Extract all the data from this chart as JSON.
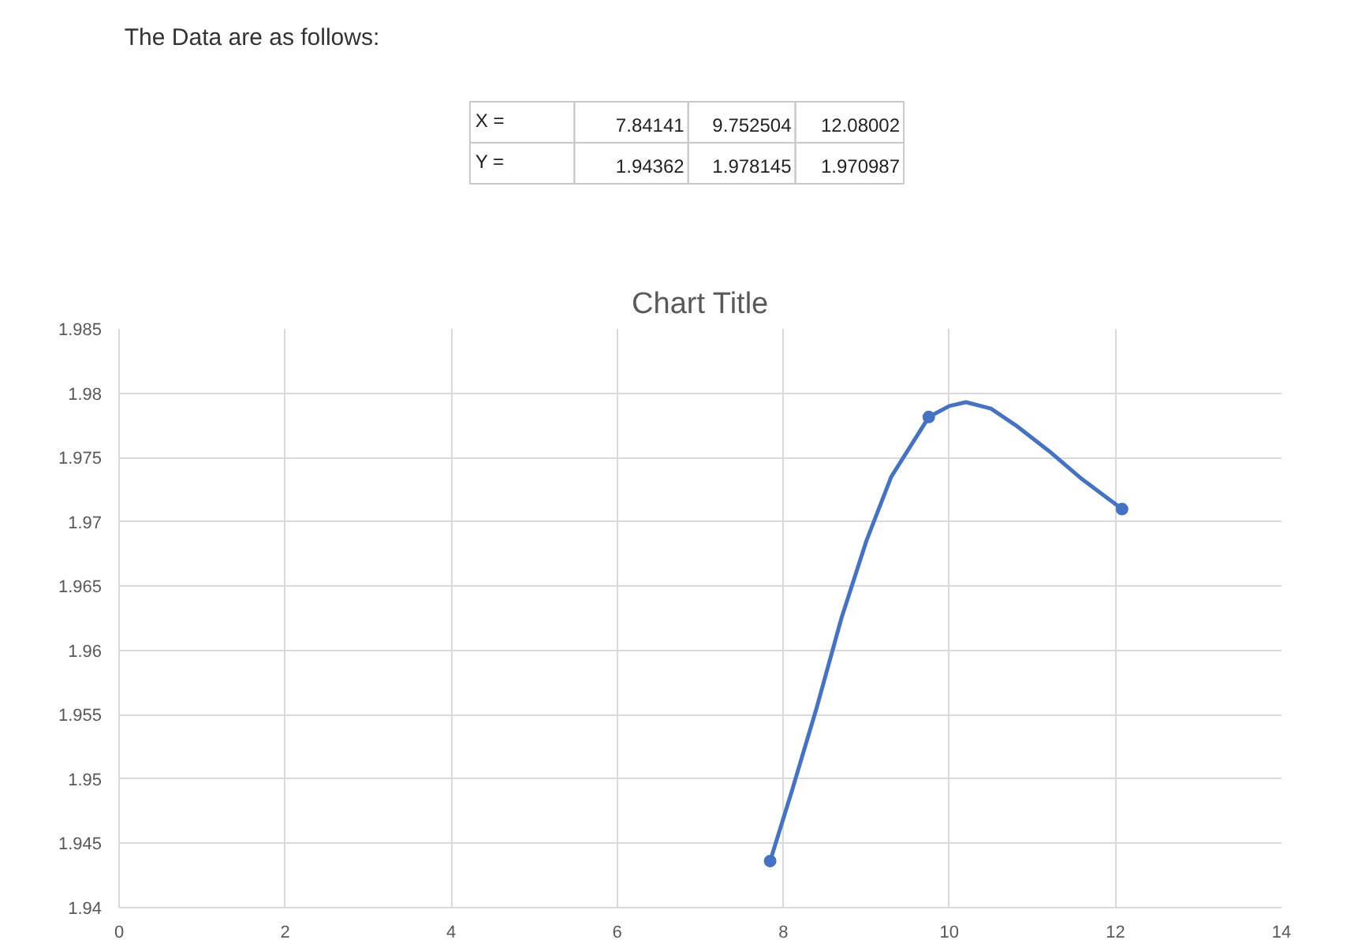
{
  "chart_data": [
    {
      "type": "other",
      "annotations": [
        "The Data are as follows:",
        "X =",
        "7.84141",
        "9.752504",
        "12.08002",
        "Y =",
        "1.94362",
        "1.978145",
        "1.970987"
      ]
    },
    {
      "type": "line",
      "title": "Chart Title",
      "series": [
        {
          "type": "line",
          "marker": "none",
          "color": "#4472c4",
          "x": [
            7.84141,
            8.1,
            8.4,
            8.7,
            9.0,
            9.3,
            9.752504,
            10.0,
            10.2,
            10.5,
            10.8,
            11.2,
            11.6,
            12.08002
          ],
          "values": [
            1.94362,
            1.949,
            1.9555,
            1.9625,
            1.9685,
            1.9735,
            1.978145,
            1.979,
            1.9793,
            1.9788,
            1.9775,
            1.9755,
            1.9733,
            1.970987
          ]
        },
        {
          "type": "scatter",
          "marker": "circle",
          "color": "#4472c4",
          "x": [
            7.84141,
            9.752504,
            12.08002
          ],
          "values": [
            1.94362,
            1.978145,
            1.970987
          ]
        }
      ],
      "xlim": [
        0,
        14
      ],
      "xticks": [
        0,
        2,
        4,
        6,
        8,
        10,
        12,
        14
      ],
      "ylim": [
        1.94,
        1.985
      ],
      "yticks": [
        1.94,
        1.945,
        1.95,
        1.955,
        1.96,
        1.965,
        1.97,
        1.975,
        1.98,
        1.985
      ],
      "grid": true,
      "line_style": "solid"
    }
  ]
}
